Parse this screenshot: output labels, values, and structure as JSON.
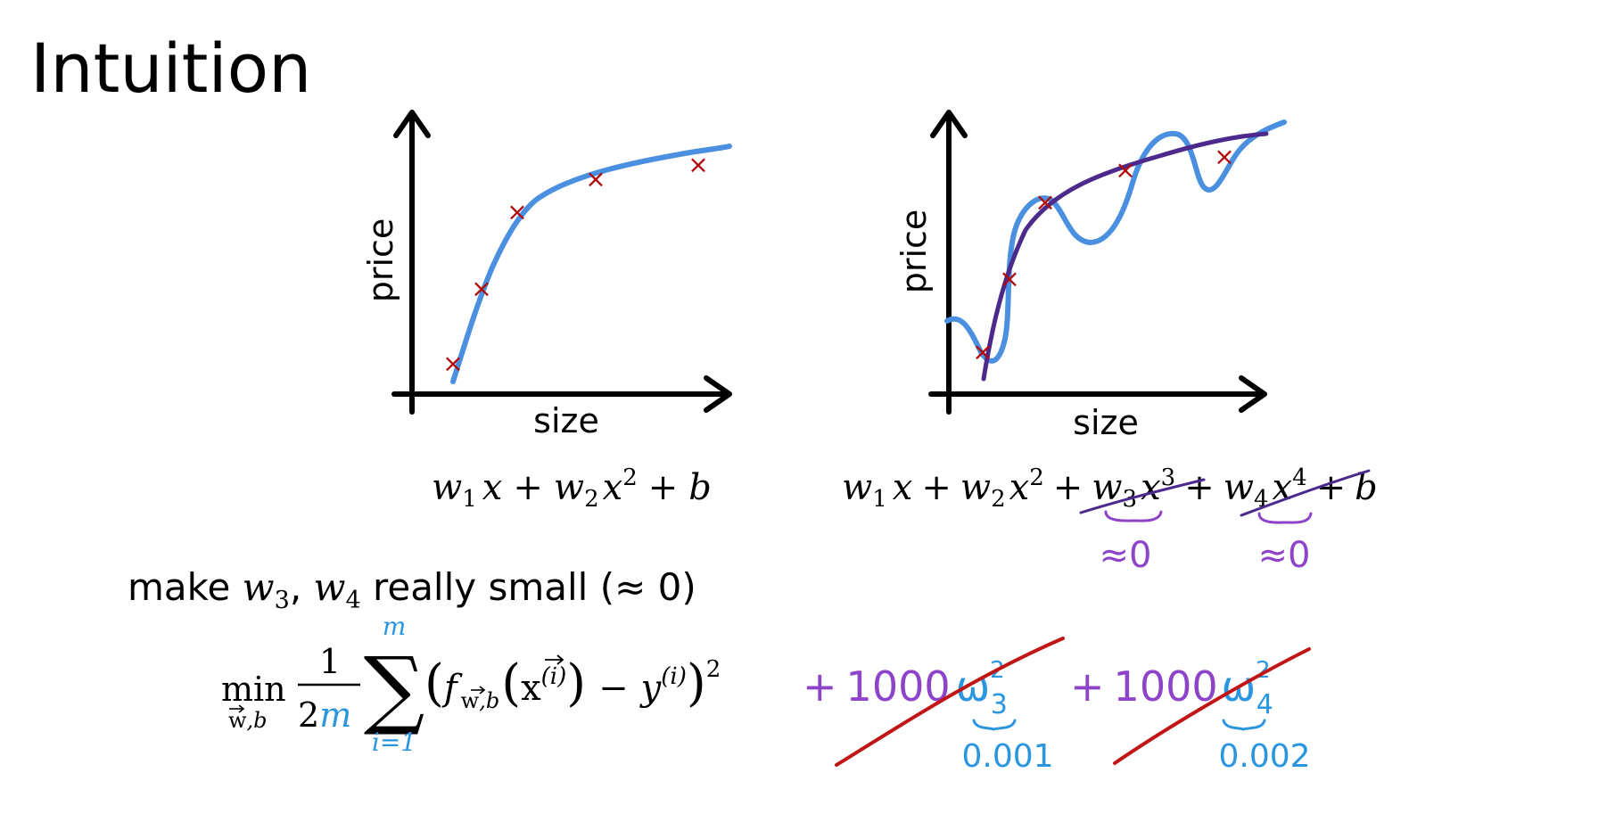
{
  "slide": {
    "title": "Intuition",
    "colors": {
      "axis": "#000000",
      "data_marker": "#b00a0a",
      "fit_curve": "#4a8fe0",
      "overfit_curve": "#4a8fe0",
      "smooth_curve": "#4b2a8c",
      "annotation_purple": "#8e44c8",
      "annotation_blue": "#2b96e0",
      "strike_red": "#c01616"
    }
  },
  "left_plot": {
    "x_label": "size",
    "y_label": "price",
    "marker_symbol": "×",
    "formula": {
      "w1": "w",
      "w1_sub": "1",
      "x1": "x",
      "plus1": "+",
      "w2": "w",
      "w2_sub": "2",
      "x2": "x",
      "x2_sup": "2",
      "plus2": "+",
      "b": "b"
    }
  },
  "right_plot": {
    "x_label": "size",
    "y_label": "price",
    "marker_symbol": "×",
    "formula": {
      "w1": "w",
      "w1_sub": "1",
      "x1": "x",
      "plus1": "+",
      "w2": "w",
      "w2_sub": "2",
      "x2": "x",
      "x2_sup": "2",
      "plus2": "+",
      "w3": "w",
      "w3_sub": "3",
      "x3": "x",
      "x3_sup": "3",
      "plus3": "+",
      "w4": "w",
      "w4_sub": "4",
      "x4": "x",
      "x4_sup": "4",
      "plus4": "+",
      "b": "b"
    },
    "annotations": {
      "approx_w3": "≈0",
      "approx_w4": "≈0"
    }
  },
  "goal": {
    "prefix": "make ",
    "w3": "w",
    "w3_sub": "3",
    "comma": ", ",
    "w4": "w",
    "w4_sub": "4",
    "suffix": " really small (≈ 0)"
  },
  "cost": {
    "min": "min",
    "min_sub_w": "w",
    "min_sub_rest": ",b",
    "frac_num": "1",
    "frac_den_2": "2",
    "frac_den_m": "m",
    "sum_symbol": "∑",
    "sum_top": "m",
    "sum_bottom": "i=1",
    "open_paren": "(",
    "f": "f",
    "f_sub_w": "w",
    "f_sub_rest": ",b",
    "inner_open": "(",
    "x_vec": "x",
    "x_sup": "(i)",
    "inner_close": ")",
    "minus": "−",
    "y": "y",
    "y_sup": "(i)",
    "close_paren": ")",
    "square": "2"
  },
  "penalty": {
    "plus1": "+",
    "coef1": "1000",
    "w3": "ω",
    "w3_sub": "3",
    "w3_sup": "2",
    "value1": "0.001",
    "plus2": "+",
    "coef2": "1000",
    "w4": "ω",
    "w4_sub": "4",
    "w4_sup": "2",
    "value2": "0.002"
  }
}
